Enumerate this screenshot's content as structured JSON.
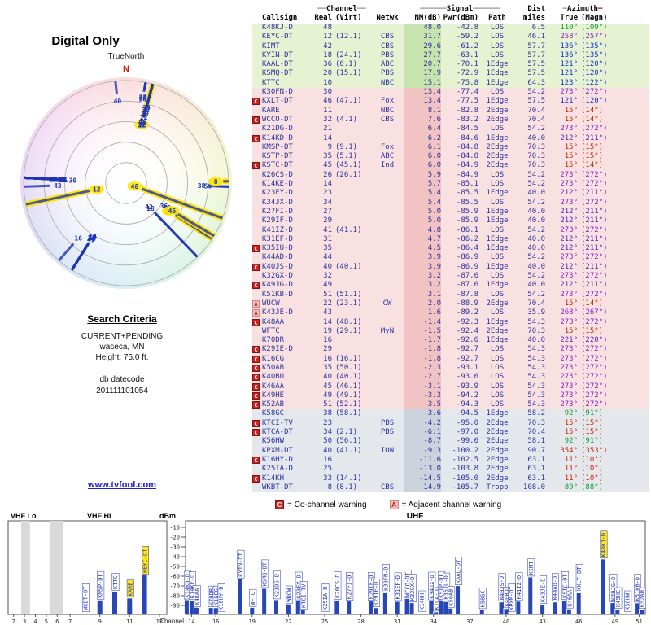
{
  "colors": {
    "accent_blue": "#1d35b5",
    "bar_blue": "#2747b8",
    "highlight_yellow": "#ffe400",
    "band_green": "#e7f2d2",
    "band_pink": "#f9e1e1",
    "band_gray": "#e4e7ec",
    "marker_red": "#cc2222",
    "marker_pink": "#f6bcbc",
    "az_north_red": "#cc2200",
    "az_east_green": "#0f9d30",
    "az_southeast_blue": "#1133cc",
    "az_southwest_indigo": "#5522bb",
    "az_west_purple": "#8822cc"
  },
  "left_panel": {
    "title": "Digital Only",
    "true_north": "TrueNorth",
    "north": "N",
    "search_criteria_title": "Search Criteria",
    "search_lines": [
      "CURRENT+PENDING",
      "waseca, MN",
      "Height: 75.0 ft."
    ],
    "datecode_label": "db datecode",
    "datecode": "201111101054",
    "link": "www.tvfool.com"
  },
  "table": {
    "header": {
      "callsign": "Callsign",
      "ch_bar": "══",
      "channel": "Channel",
      "real": "Real",
      "virt": "(Virt)",
      "netwk": "Netwk",
      "sig_bar": "══════",
      "signal": "Signal",
      "nm": "NM(dB)",
      "pwr": "Pwr(dBm)",
      "path": "Path",
      "dist": "Dist",
      "miles": "miles",
      "az_bar": "═",
      "azimuth": "Azimuth",
      "true": "True",
      "magn": "(Magn)"
    },
    "columns_key": {
      "m": "warning marker",
      "cs": "Callsign",
      "re": "Real channel",
      "vi": "Virtual channel",
      "nw": "Network",
      "nm": "NM(dB)",
      "pw": "Pwr(dBm)",
      "pa": "Path",
      "di": "Dist miles",
      "tr": "Azimuth True",
      "mg": "Azimuth Magn",
      "b": "color band g=green p=pink e=gray",
      "ac": "azimuth text color"
    },
    "rows": [
      {
        "m": "",
        "cs": "K48KJ-D",
        "re": "48",
        "vi": "",
        "nw": "",
        "nm": "48.0",
        "pw": "-42.8",
        "pa": "LOS",
        "di": "6.5",
        "tr": "110°",
        "mg": "(109°)",
        "b": "g",
        "ac": "#0f9d30"
      },
      {
        "m": "",
        "cs": "KEYC-DT",
        "re": "12",
        "vi": "(12.1)",
        "nw": "CBS",
        "nm": "31.7",
        "pw": "-59.2",
        "pa": "LOS",
        "di": "46.1",
        "tr": "258°",
        "mg": "(257°)",
        "b": "g",
        "ac": "#8822cc"
      },
      {
        "m": "",
        "cs": "KIMT",
        "re": "42",
        "vi": "",
        "nw": "CBS",
        "nm": "29.6",
        "pw": "-61.2",
        "pa": "LOS",
        "di": "57.7",
        "tr": "136°",
        "mg": "(135°)",
        "b": "g",
        "ac": "#1133cc"
      },
      {
        "m": "",
        "cs": "KYIN-DT",
        "re": "18",
        "vi": "(24.1)",
        "nw": "PBS",
        "nm": "27.7",
        "pw": "-63.1",
        "pa": "LOS",
        "di": "57.7",
        "tr": "136°",
        "mg": "(135°)",
        "b": "g",
        "ac": "#1133cc"
      },
      {
        "m": "",
        "cs": "KAAL-DT",
        "re": "36",
        "vi": "(6.1)",
        "nw": "ABC",
        "nm": "20.7",
        "pw": "-70.1",
        "pa": "1Edge",
        "di": "57.5",
        "tr": "121°",
        "mg": "(120°)",
        "b": "g",
        "ac": "#1133cc"
      },
      {
        "m": "",
        "cs": "KSMQ-DT",
        "re": "20",
        "vi": "(15.1)",
        "nw": "PBS",
        "nm": "17.9",
        "pw": "-72.9",
        "pa": "1Edge",
        "di": "57.5",
        "tr": "121°",
        "mg": "(120°)",
        "b": "g",
        "ac": "#1133cc"
      },
      {
        "m": "",
        "cs": "KTTC",
        "re": "10",
        "vi": "",
        "nw": "NBC",
        "nm": "15.1",
        "pw": "-75.8",
        "pa": "1Edge",
        "di": "64.3",
        "tr": "123°",
        "mg": "(122°)",
        "b": "g",
        "ac": "#1133cc"
      },
      {
        "m": "",
        "cs": "K30FN-D",
        "re": "30",
        "vi": "",
        "nw": "",
        "nm": "13.4",
        "pw": "-77.4",
        "pa": "LOS",
        "di": "54.2",
        "tr": "273°",
        "mg": "(272°)",
        "b": "p",
        "ac": "#8822cc"
      },
      {
        "m": "C",
        "cs": "KXLT-DT",
        "re": "46",
        "vi": "(47.1)",
        "nw": "Fox",
        "nm": "13.4",
        "pw": "-77.5",
        "pa": "1Edge",
        "di": "57.5",
        "tr": "121°",
        "mg": "(120°)",
        "b": "p",
        "ac": "#1133cc"
      },
      {
        "m": "",
        "cs": "KARE",
        "re": "11",
        "vi": "",
        "nw": "NBC",
        "nm": "8.1",
        "pw": "-82.8",
        "pa": "2Edge",
        "di": "70.4",
        "tr": "15°",
        "mg": "(14°)",
        "b": "p",
        "ac": "#cc2200"
      },
      {
        "m": "C",
        "cs": "WCCO-DT",
        "re": "32",
        "vi": "(4.1)",
        "nw": "CBS",
        "nm": "7.6",
        "pw": "-83.2",
        "pa": "2Edge",
        "di": "70.4",
        "tr": "15°",
        "mg": "(14°)",
        "b": "p",
        "ac": "#cc2200"
      },
      {
        "m": "",
        "cs": "K21DG-D",
        "re": "21",
        "vi": "",
        "nw": "",
        "nm": "6.4",
        "pw": "-84.5",
        "pa": "LOS",
        "di": "54.2",
        "tr": "273°",
        "mg": "(272°)",
        "b": "p",
        "ac": "#8822cc"
      },
      {
        "m": "C",
        "cs": "K14KD-D",
        "re": "14",
        "vi": "",
        "nw": "",
        "nm": "6.2",
        "pw": "-84.6",
        "pa": "1Edge",
        "di": "40.0",
        "tr": "212°",
        "mg": "(211°)",
        "b": "p",
        "ac": "#5522bb"
      },
      {
        "m": "",
        "cs": "KMSP-DT",
        "re": "9",
        "vi": "(9.1)",
        "nw": "Fox",
        "nm": "6.1",
        "pw": "-84.8",
        "pa": "2Edge",
        "di": "70.3",
        "tr": "15°",
        "mg": "(15°)",
        "b": "p",
        "ac": "#cc2200"
      },
      {
        "m": "",
        "cs": "KSTP-DT",
        "re": "35",
        "vi": "(5.1)",
        "nw": "ABC",
        "nm": "6.0",
        "pw": "-84.8",
        "pa": "2Edge",
        "di": "70.3",
        "tr": "15°",
        "mg": "(15°)",
        "b": "p",
        "ac": "#cc2200"
      },
      {
        "m": "C",
        "cs": "KSTC-DT",
        "re": "45",
        "vi": "(45.1)",
        "nw": "Ind",
        "nm": "6.0",
        "pw": "-84.9",
        "pa": "2Edge",
        "di": "70.3",
        "tr": "15°",
        "mg": "(14°)",
        "b": "p",
        "ac": "#cc2200"
      },
      {
        "m": "",
        "cs": "K26CS-D",
        "re": "26",
        "vi": "(26.1)",
        "nw": "",
        "nm": "5.9",
        "pw": "-84.9",
        "pa": "LOS",
        "di": "54.2",
        "tr": "273°",
        "mg": "(272°)",
        "b": "p",
        "ac": "#8822cc"
      },
      {
        "m": "",
        "cs": "K14KE-D",
        "re": "14",
        "vi": "",
        "nw": "",
        "nm": "5.7",
        "pw": "-85.1",
        "pa": "LOS",
        "di": "54.2",
        "tr": "273°",
        "mg": "(272°)",
        "b": "p",
        "ac": "#8822cc"
      },
      {
        "m": "",
        "cs": "K23FY-D",
        "re": "23",
        "vi": "",
        "nw": "",
        "nm": "5.4",
        "pw": "-85.5",
        "pa": "1Edge",
        "di": "40.0",
        "tr": "212°",
        "mg": "(211°)",
        "b": "p",
        "ac": "#5522bb"
      },
      {
        "m": "",
        "cs": "K34JX-D",
        "re": "34",
        "vi": "",
        "nw": "",
        "nm": "5.4",
        "pw": "-85.5",
        "pa": "LOS",
        "di": "54.2",
        "tr": "273°",
        "mg": "(272°)",
        "b": "p",
        "ac": "#8822cc"
      },
      {
        "m": "",
        "cs": "K27FI-D",
        "re": "27",
        "vi": "",
        "nw": "",
        "nm": "5.0",
        "pw": "-85.9",
        "pa": "1Edge",
        "di": "40.0",
        "tr": "212°",
        "mg": "(211°)",
        "b": "p",
        "ac": "#5522bb"
      },
      {
        "m": "",
        "cs": "K29IF-D",
        "re": "29",
        "vi": "",
        "nw": "",
        "nm": "5.0",
        "pw": "-85.9",
        "pa": "1Edge",
        "di": "40.0",
        "tr": "212°",
        "mg": "(211°)",
        "b": "p",
        "ac": "#5522bb"
      },
      {
        "m": "",
        "cs": "K41IZ-D",
        "re": "41",
        "vi": "(41.1)",
        "nw": "",
        "nm": "4.8",
        "pw": "-86.1",
        "pa": "LOS",
        "di": "54.2",
        "tr": "273°",
        "mg": "(272°)",
        "b": "p",
        "ac": "#8822cc"
      },
      {
        "m": "",
        "cs": "K31EF-D",
        "re": "31",
        "vi": "",
        "nw": "",
        "nm": "4.7",
        "pw": "-86.2",
        "pa": "1Edge",
        "di": "40.0",
        "tr": "212°",
        "mg": "(211°)",
        "b": "p",
        "ac": "#5522bb"
      },
      {
        "m": "C",
        "cs": "K35IU-D",
        "re": "35",
        "vi": "",
        "nw": "",
        "nm": "4.5",
        "pw": "-86.4",
        "pa": "1Edge",
        "di": "40.0",
        "tr": "212°",
        "mg": "(211°)",
        "b": "p",
        "ac": "#5522bb"
      },
      {
        "m": "",
        "cs": "K44AD-D",
        "re": "44",
        "vi": "",
        "nw": "",
        "nm": "3.9",
        "pw": "-86.9",
        "pa": "LOS",
        "di": "54.2",
        "tr": "273°",
        "mg": "(272°)",
        "b": "p",
        "ac": "#8822cc"
      },
      {
        "m": "C",
        "cs": "K40JS-D",
        "re": "40",
        "vi": "(40.1)",
        "nw": "",
        "nm": "3.9",
        "pw": "-86.9",
        "pa": "1Edge",
        "di": "40.0",
        "tr": "212°",
        "mg": "(211°)",
        "b": "p",
        "ac": "#5522bb"
      },
      {
        "m": "",
        "cs": "K32GX-D",
        "re": "32",
        "vi": "",
        "nw": "",
        "nm": "3.2",
        "pw": "-87.6",
        "pa": "LOS",
        "di": "54.2",
        "tr": "273°",
        "mg": "(272°)",
        "b": "p",
        "ac": "#8822cc"
      },
      {
        "m": "C",
        "cs": "K49JG-D",
        "re": "49",
        "vi": "",
        "nw": "",
        "nm": "3.2",
        "pw": "-87.6",
        "pa": "1Edge",
        "di": "40.0",
        "tr": "212°",
        "mg": "(211°)",
        "b": "p",
        "ac": "#5522bb"
      },
      {
        "m": "",
        "cs": "K51KB-D",
        "re": "51",
        "vi": "(51.1)",
        "nw": "",
        "nm": "3.1",
        "pw": "-87.8",
        "pa": "LOS",
        "di": "54.2",
        "tr": "273°",
        "mg": "(272°)",
        "b": "p",
        "ac": "#8822cc"
      },
      {
        "m": "A",
        "cs": "WUCW",
        "re": "22",
        "vi": "(23.1)",
        "nw": "CW",
        "nm": "2.0",
        "pw": "-88.9",
        "pa": "2Edge",
        "di": "70.4",
        "tr": "15°",
        "mg": "(14°)",
        "b": "p",
        "ac": "#cc2200"
      },
      {
        "m": "A",
        "cs": "K43JE-D",
        "re": "43",
        "vi": "",
        "nw": "",
        "nm": "1.6",
        "pw": "-89.2",
        "pa": "LOS",
        "di": "35.9",
        "tr": "268°",
        "mg": "(267°)",
        "b": "p",
        "ac": "#8822cc"
      },
      {
        "m": "C",
        "cs": "K48AA",
        "re": "14",
        "vi": "(48.1)",
        "nw": "",
        "nm": "-1.4",
        "pw": "-92.3",
        "pa": "1Edge",
        "di": "54.3",
        "tr": "273°",
        "mg": "(272°)",
        "b": "p",
        "ac": "#8822cc"
      },
      {
        "m": "",
        "cs": "WFTC",
        "re": "19",
        "vi": "(29.1)",
        "nw": "MyN",
        "nm": "-1.5",
        "pw": "-92.4",
        "pa": "2Edge",
        "di": "70.3",
        "tr": "15°",
        "mg": "(15°)",
        "b": "p",
        "ac": "#cc2200"
      },
      {
        "m": "",
        "cs": "K70DR",
        "re": "16",
        "vi": "",
        "nw": "",
        "nm": "-1.7",
        "pw": "-92.6",
        "pa": "1Edge",
        "di": "40.0",
        "tr": "221°",
        "mg": "(220°)",
        "b": "p",
        "ac": "#5522bb"
      },
      {
        "m": "C",
        "cs": "K29IE-D",
        "re": "29",
        "vi": "",
        "nw": "",
        "nm": "-1.8",
        "pw": "-92.7",
        "pa": "LOS",
        "di": "54.3",
        "tr": "273°",
        "mg": "(272°)",
        "b": "p",
        "ac": "#8822cc"
      },
      {
        "m": "C",
        "cs": "K16CG",
        "re": "16",
        "vi": "(16.1)",
        "nw": "",
        "nm": "-1.8",
        "pw": "-92.7",
        "pa": "LOS",
        "di": "54.3",
        "tr": "273°",
        "mg": "(272°)",
        "b": "p",
        "ac": "#8822cc"
      },
      {
        "m": "C",
        "cs": "K50AB",
        "re": "35",
        "vi": "(50.1)",
        "nw": "",
        "nm": "-2.3",
        "pw": "-93.1",
        "pa": "LOS",
        "di": "54.3",
        "tr": "273°",
        "mg": "(272°)",
        "b": "p",
        "ac": "#8822cc"
      },
      {
        "m": "C",
        "cs": "K40BU",
        "re": "40",
        "vi": "(40.1)",
        "nw": "",
        "nm": "-2.7",
        "pw": "-93.6",
        "pa": "LOS",
        "di": "54.3",
        "tr": "273°",
        "mg": "(272°)",
        "b": "p",
        "ac": "#8822cc"
      },
      {
        "m": "C",
        "cs": "K46AA",
        "re": "45",
        "vi": "(46.1)",
        "nw": "",
        "nm": "-3.1",
        "pw": "-93.9",
        "pa": "LOS",
        "di": "54.3",
        "tr": "273°",
        "mg": "(272°)",
        "b": "p",
        "ac": "#8822cc"
      },
      {
        "m": "C",
        "cs": "K49HE",
        "re": "49",
        "vi": "(49.1)",
        "nw": "",
        "nm": "-3.3",
        "pw": "-94.2",
        "pa": "LOS",
        "di": "54.3",
        "tr": "273°",
        "mg": "(272°)",
        "b": "p",
        "ac": "#8822cc"
      },
      {
        "m": "C",
        "cs": "K52AB",
        "re": "51",
        "vi": "(52.1)",
        "nw": "",
        "nm": "-3.5",
        "pw": "-94.3",
        "pa": "LOS",
        "di": "54.3",
        "tr": "273°",
        "mg": "(272°)",
        "b": "p",
        "ac": "#8822cc"
      },
      {
        "m": "",
        "cs": "K58GC",
        "re": "38",
        "vi": "(58.1)",
        "nw": "",
        "nm": "-3.6",
        "pw": "-94.5",
        "pa": "1Edge",
        "di": "58.2",
        "tr": "92°",
        "mg": "(91°)",
        "b": "e",
        "ac": "#0f9d30"
      },
      {
        "m": "C",
        "cs": "KTCI-TV",
        "re": "23",
        "vi": "",
        "nw": "PBS",
        "nm": "-4.2",
        "pw": "-95.0",
        "pa": "2Edge",
        "di": "70.3",
        "tr": "15°",
        "mg": "(15°)",
        "b": "e",
        "ac": "#cc2200"
      },
      {
        "m": "C",
        "cs": "KTCA-DT",
        "re": "34",
        "vi": "(2.1)",
        "nw": "PBS",
        "nm": "-6.1",
        "pw": "-97.0",
        "pa": "2Edge",
        "di": "70.4",
        "tr": "15°",
        "mg": "(15°)",
        "b": "e",
        "ac": "#cc2200"
      },
      {
        "m": "",
        "cs": "K56HW",
        "re": "50",
        "vi": "(56.1)",
        "nw": "",
        "nm": "-8.7",
        "pw": "-99.6",
        "pa": "2Edge",
        "di": "58.1",
        "tr": "92°",
        "mg": "(91°)",
        "b": "e",
        "ac": "#0f9d30"
      },
      {
        "m": "",
        "cs": "KPXM-DT",
        "re": "40",
        "vi": "(41.1)",
        "nw": "ION",
        "nm": "-9.3",
        "pw": "-100.2",
        "pa": "2Edge",
        "di": "90.7",
        "tr": "354°",
        "mg": "(353°)",
        "b": "e",
        "ac": "#cc2200"
      },
      {
        "m": "C",
        "cs": "K16HY-D",
        "re": "16",
        "vi": "",
        "nw": "",
        "nm": "-11.6",
        "pw": "-102.5",
        "pa": "2Edge",
        "di": "63.1",
        "tr": "11°",
        "mg": "(10°)",
        "b": "e",
        "ac": "#cc2200"
      },
      {
        "m": "",
        "cs": "K25IA-D",
        "re": "25",
        "vi": "",
        "nw": "",
        "nm": "-13.0",
        "pw": "-103.8",
        "pa": "2Edge",
        "di": "63.1",
        "tr": "11°",
        "mg": "(10°)",
        "b": "e",
        "ac": "#cc2200"
      },
      {
        "m": "C",
        "cs": "K14KH",
        "re": "33",
        "vi": "(14.1)",
        "nw": "",
        "nm": "-14.5",
        "pw": "-105.0",
        "pa": "2Edge",
        "di": "63.1",
        "tr": "11°",
        "mg": "(10°)",
        "b": "e",
        "ac": "#cc2200"
      },
      {
        "m": "",
        "cs": "WKBT-DT",
        "re": "8",
        "vi": "(8.1)",
        "nw": "CBS",
        "nm": "-14.9",
        "pw": "-105.7",
        "pa": "Tropo",
        "di": "108.0",
        "tr": "89°",
        "mg": "(88°)",
        "b": "e",
        "ac": "#0f9d30"
      }
    ]
  },
  "legend": {
    "c_symbol": "C",
    "c_text": "= Co-channel warning",
    "a_symbol": "A",
    "a_text": "= Adjacent channel warning"
  },
  "chart_data": {
    "radar": {
      "type": "scatter",
      "projection": "polar-azimuth",
      "description": "Stations from table.rows plotted at true azimuth; radius grows as Pwr(dBm) weakens; labels are real channel numbers",
      "north_label": "N",
      "rings": 5,
      "highlights": [
        "K48KJ-D",
        "KEYC-DT",
        "KARE",
        "KTTC",
        "KXLT-DT",
        "WKBT-DT"
      ]
    },
    "signal_bars": {
      "type": "bar",
      "xlabel": "Channel",
      "ylabel": "dBm",
      "ylim": [
        -90,
        -10
      ],
      "dbm_ticks": [
        -10,
        -20,
        -30,
        -40,
        -50,
        -60,
        -70,
        -80,
        -90
      ],
      "sections": [
        {
          "label": "VHF Lo",
          "ch_range": [
            2,
            6
          ]
        },
        {
          "label": "VHF Hi",
          "ch_range": [
            7,
            13
          ]
        },
        {
          "label": "UHF",
          "ch_range": [
            14,
            51
          ]
        }
      ],
      "vhf_ticks": [
        2,
        3,
        4,
        5,
        6,
        7,
        9,
        11,
        13
      ],
      "uhf_ticks": [
        14,
        16,
        19,
        22,
        25,
        28,
        31,
        34,
        37,
        40,
        43,
        46,
        49,
        51
      ],
      "shaded_vhf_bands": [
        [
          2.7,
          3.5
        ],
        [
          5.3,
          6.5
        ]
      ],
      "bars_from": "table.rows (x = real channel, bar top = Pwr(dBm), label = callsign)",
      "highlights": [
        "KEYC-DT",
        "KARE",
        "K48KJ-D"
      ]
    }
  }
}
